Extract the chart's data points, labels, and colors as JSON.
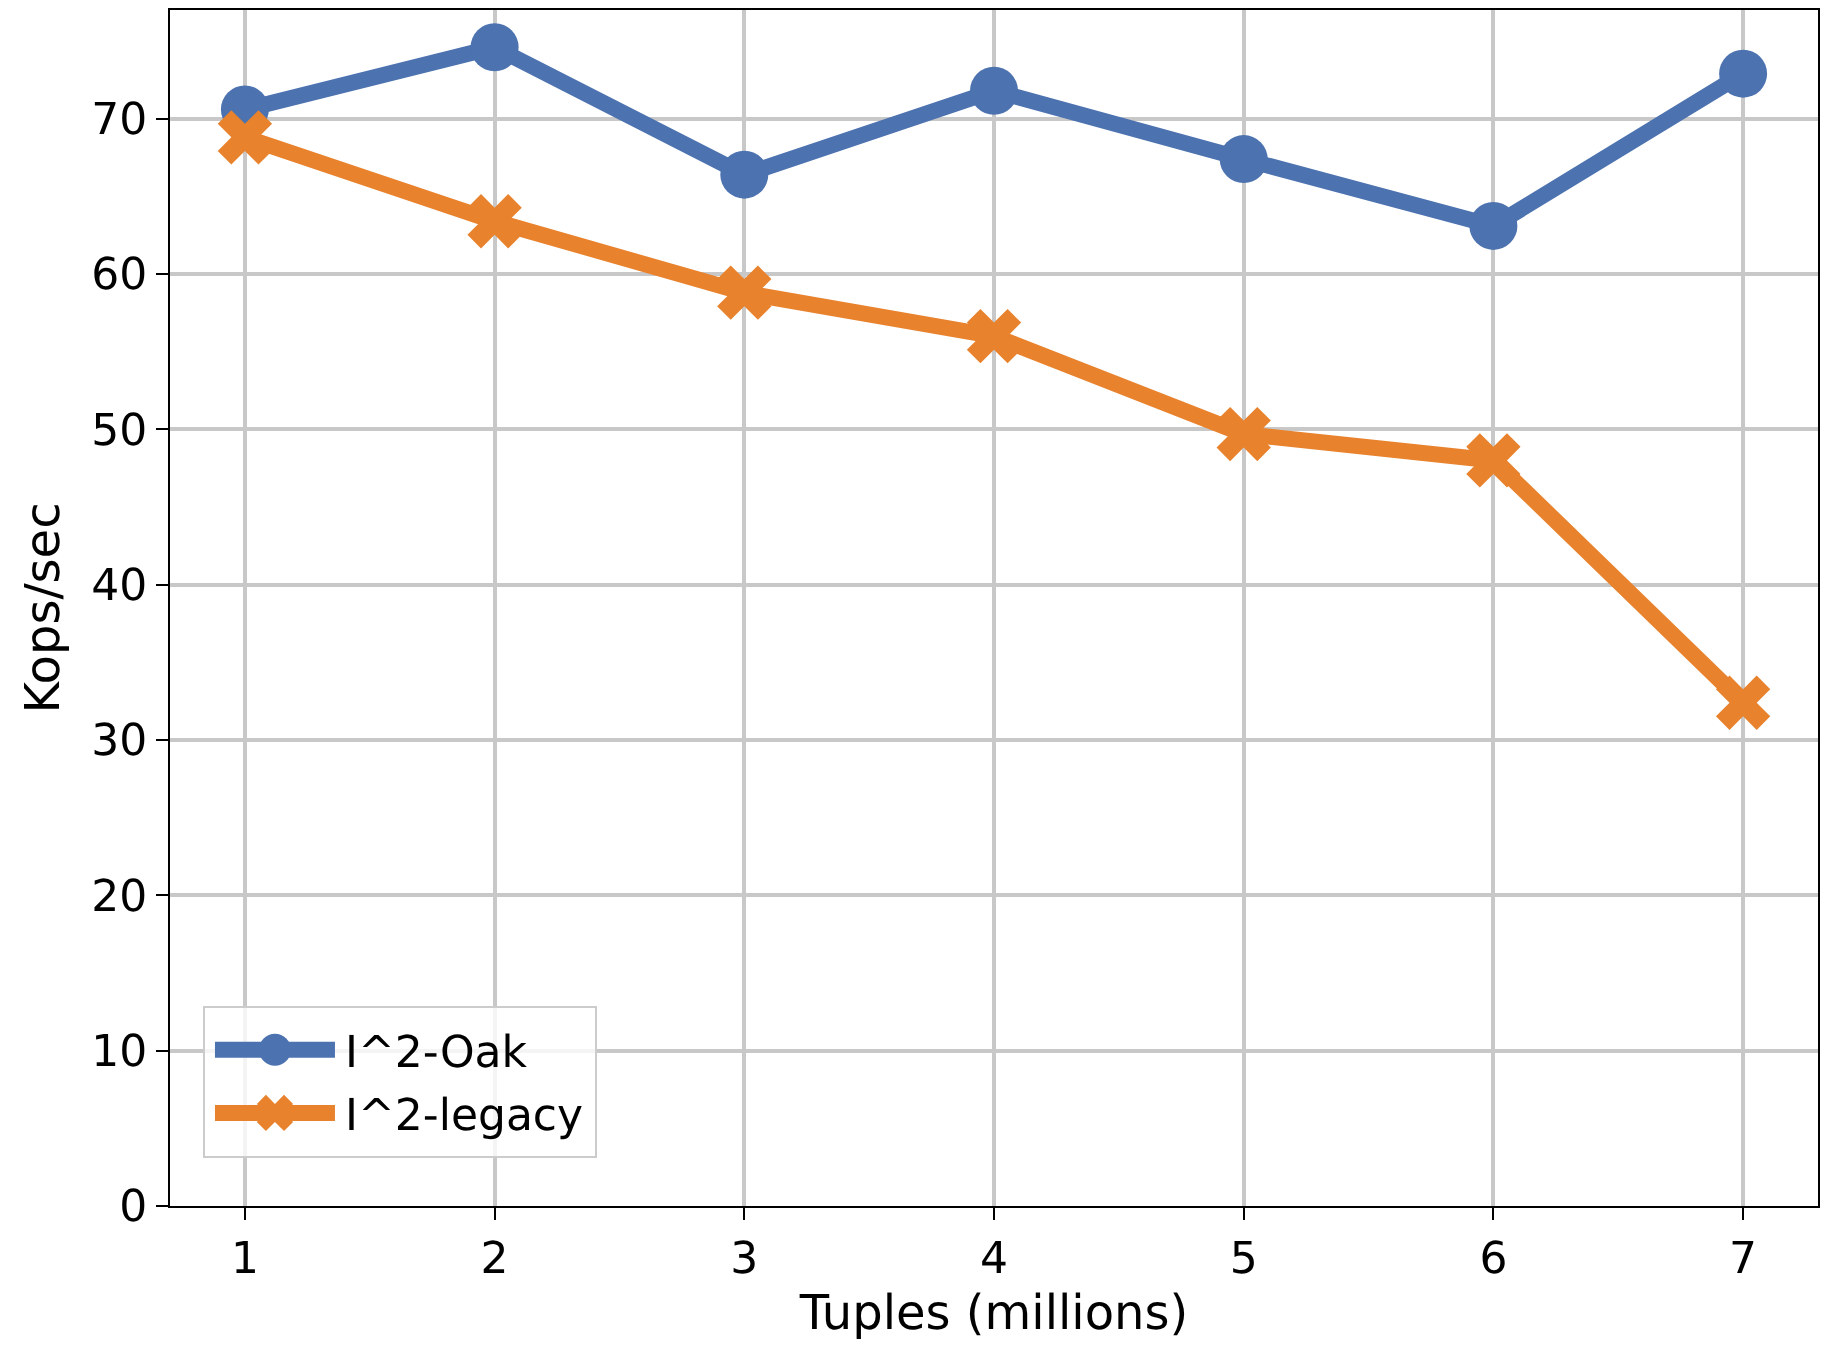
{
  "chart_data": {
    "type": "line",
    "xlabel": "Tuples (millions)",
    "ylabel": "Kops/sec",
    "x": [
      1,
      2,
      3,
      4,
      5,
      6,
      7
    ],
    "series": [
      {
        "name": "I^2-Oak",
        "color": "#4c72b0",
        "marker": "circle",
        "values": [
          70.6,
          74.6,
          66.4,
          71.8,
          67.4,
          63.1,
          72.9
        ]
      },
      {
        "name": "I^2-legacy",
        "color": "#e8822d",
        "marker": "cross",
        "values": [
          68.8,
          63.4,
          58.8,
          56.0,
          49.7,
          48.0,
          32.4
        ]
      }
    ],
    "xlim": [
      0.7,
      7.3
    ],
    "ylim": [
      0,
      77
    ],
    "xticks": [
      1,
      2,
      3,
      4,
      5,
      6,
      7
    ],
    "yticks": [
      0,
      10,
      20,
      30,
      40,
      50,
      60,
      70
    ],
    "grid": true,
    "legend": "bottom left",
    "line_style": "solid"
  }
}
